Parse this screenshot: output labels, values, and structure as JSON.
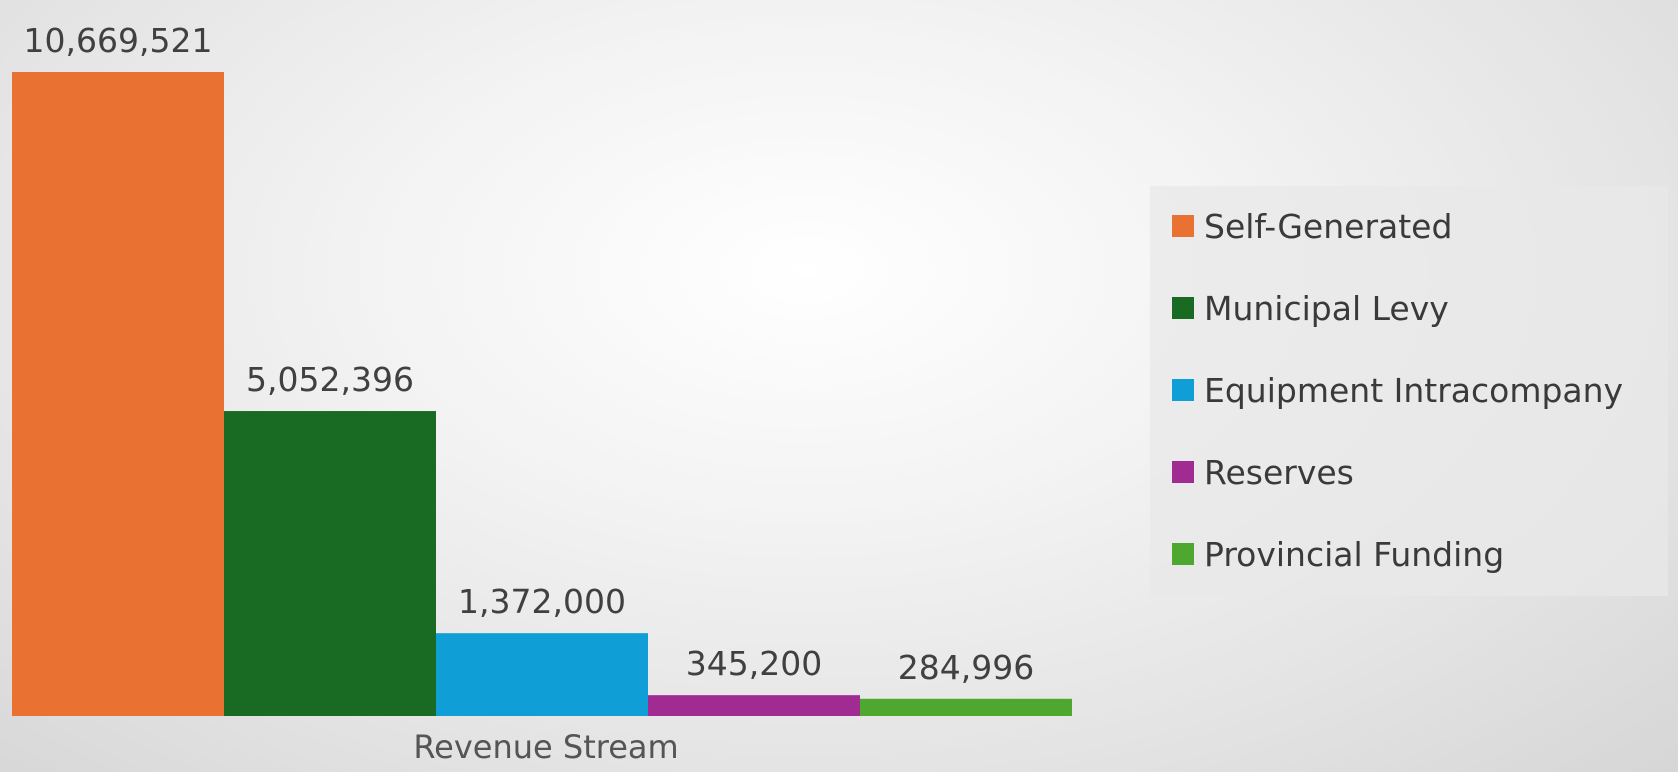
{
  "chart_data": {
    "type": "bar",
    "xlabel": "Revenue Stream",
    "ylabel": "",
    "ylim": [
      0,
      10669521
    ],
    "grid": false,
    "legend_position": "right",
    "category": "Revenue Stream",
    "series": [
      {
        "name": "Self-Generated",
        "value": 10669521,
        "label": "10,669,521",
        "color": "#E97132"
      },
      {
        "name": "Municipal Levy",
        "value": 5052396,
        "label": "5,052,396",
        "color": "#196B24"
      },
      {
        "name": "Equipment Intracompany",
        "value": 1372000,
        "label": "1,372,000",
        "color": "#0F9ED5"
      },
      {
        "name": "Reserves",
        "value": 345200,
        "label": "345,200",
        "color": "#A02B93"
      },
      {
        "name": "Provincial Funding",
        "value": 284996,
        "label": "284,996",
        "color": "#4EA72E"
      }
    ]
  }
}
